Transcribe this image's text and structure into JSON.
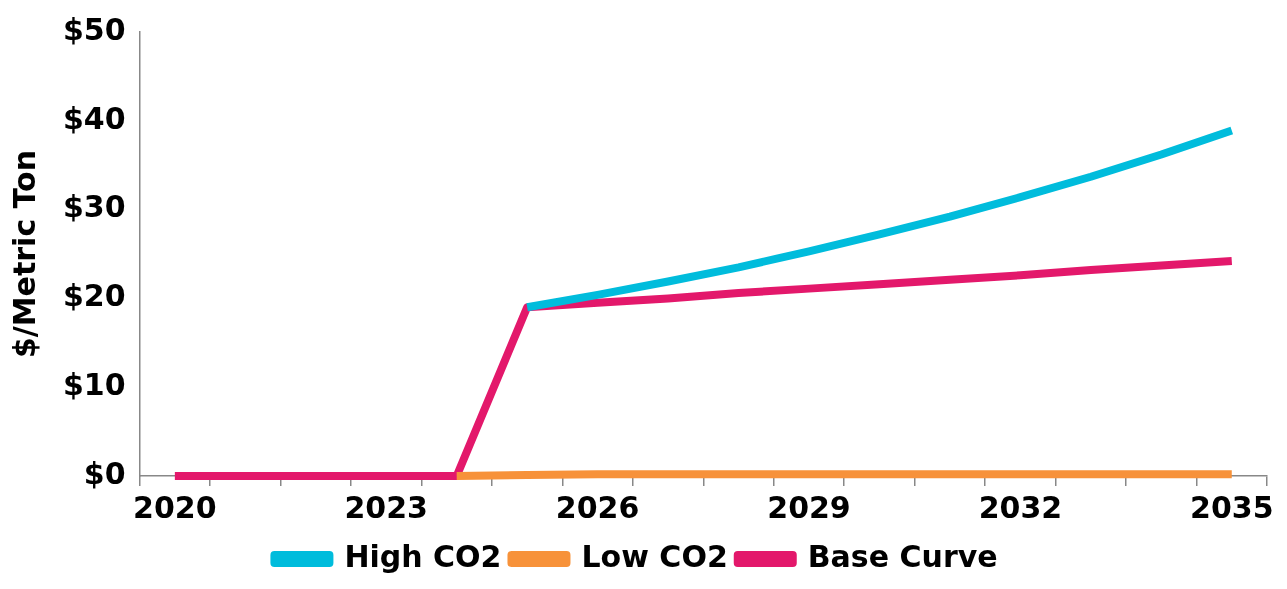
{
  "chart_data": {
    "type": "line",
    "ylabel": "$/Metric Ton",
    "categories": [
      "2020",
      null,
      null,
      "2023",
      null,
      null,
      "2026",
      null,
      null,
      "2029",
      null,
      null,
      "2032",
      null,
      null,
      "2035"
    ],
    "series": [
      {
        "name": "High CO2",
        "color": "#00bcdc",
        "values": [
          null,
          null,
          null,
          null,
          null,
          19,
          20.4,
          21.9,
          23.5,
          25.3,
          27.2,
          29.2,
          31.4,
          33.7,
          36.2,
          38.9
        ]
      },
      {
        "name": "Low CO2",
        "color": "#f7923a",
        "values": [
          null,
          null,
          null,
          null,
          0,
          0.1,
          0.2,
          0.2,
          0.2,
          0.2,
          0.2,
          0.2,
          0.2,
          0.2,
          0.2,
          0.2
        ]
      },
      {
        "name": "Base Curve",
        "color": "#e3186b",
        "values": [
          0,
          0,
          0,
          0,
          0,
          19,
          19.5,
          20,
          20.6,
          21.1,
          21.6,
          22.1,
          22.6,
          23.2,
          23.7,
          24.2
        ]
      }
    ],
    "ylim": [
      0,
      50
    ],
    "yticks": [
      {
        "value": 0,
        "label": "$0"
      },
      {
        "value": 10,
        "label": "$10"
      },
      {
        "value": 20,
        "label": "$20"
      },
      {
        "value": 30,
        "label": "$30"
      },
      {
        "value": 40,
        "label": "$40"
      },
      {
        "value": 50,
        "label": "$50"
      }
    ],
    "grid": false,
    "legend": "bottom",
    "marker": "none",
    "line_style": "solid"
  }
}
